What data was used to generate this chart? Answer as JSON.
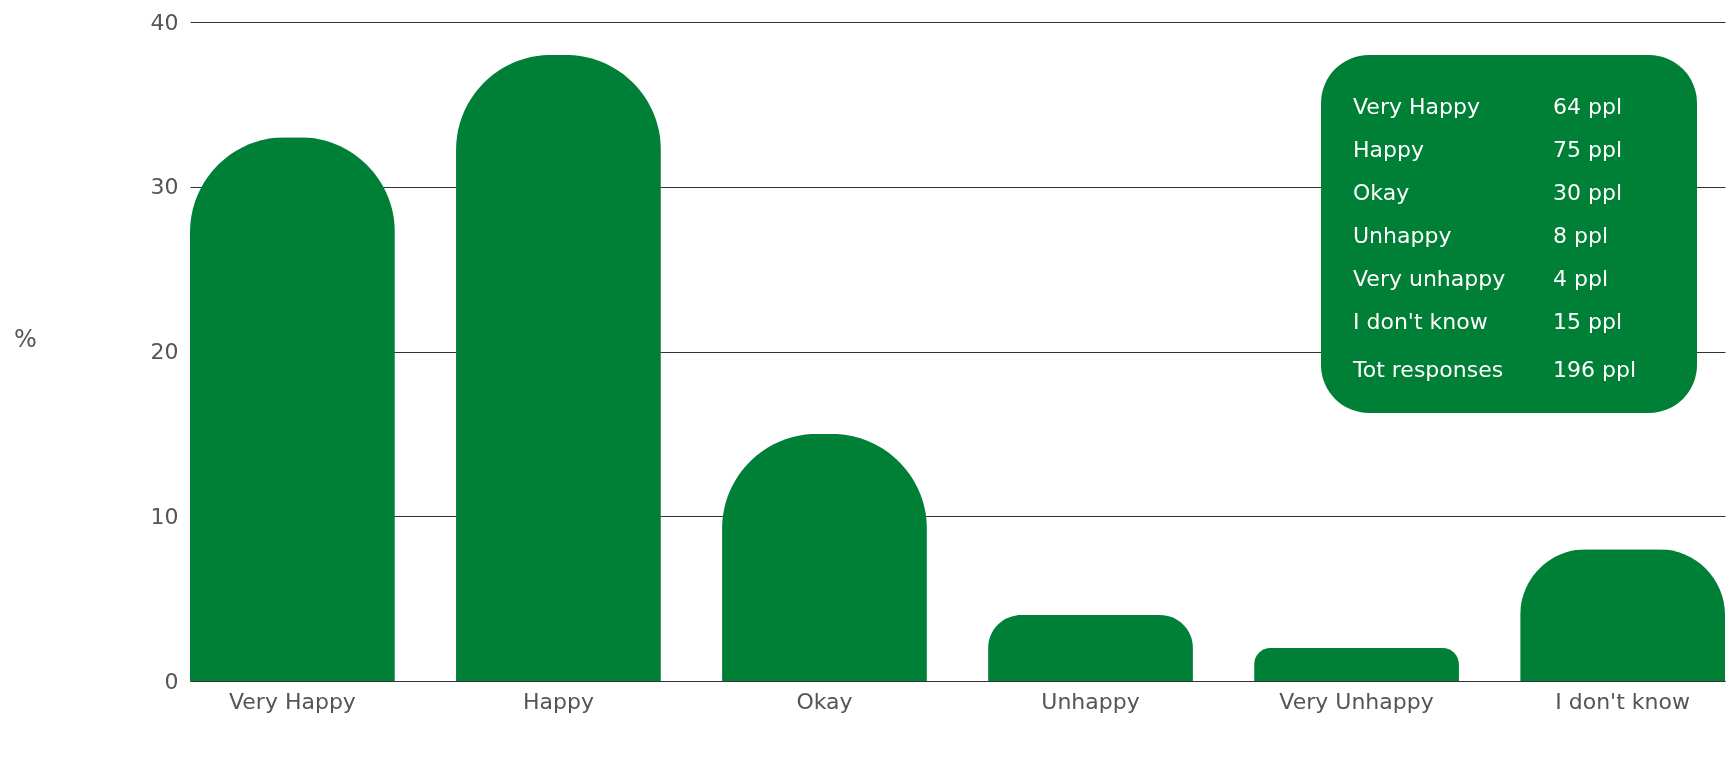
{
  "chart_data": {
    "type": "bar",
    "ylabel": "%",
    "categories": [
      "Very Happy",
      "Happy",
      "Okay",
      "Unhappy",
      "Very Unhappy",
      "I don't know"
    ],
    "values": [
      33,
      38,
      15,
      4,
      2,
      8
    ],
    "color": "#007f36",
    "ylim": [
      0,
      40
    ],
    "yticks": [
      0,
      10,
      20,
      30,
      40
    ],
    "grid": "y",
    "annotations": [
      "Very Happy",
      "64 ppl",
      "Happy",
      "75 ppl",
      "Okay",
      "30 ppl",
      "Unhappy",
      "8  ppl",
      "Very unhappy",
      "4  ppl",
      "I don't know",
      "15 ppl",
      "Tot responses",
      "196  ppl"
    ]
  }
}
